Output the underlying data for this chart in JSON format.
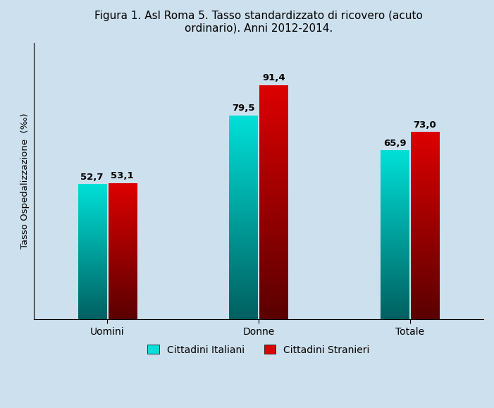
{
  "title": "Figura 1. Asl Roma 5. Tasso standardizzato di ricovero (acuto\nordinario). Anni 2012-2014.",
  "ylabel": "Tasso Ospedalizzazione  (‰)",
  "categories": [
    "Uomini",
    "Donne",
    "Totale"
  ],
  "italiani": [
    52.7,
    79.5,
    65.9
  ],
  "stranieri": [
    53.1,
    91.4,
    73.0
  ],
  "italiani_labels": [
    "52,7",
    "79,5",
    "65,9"
  ],
  "stranieri_labels": [
    "53,1",
    "91,4",
    "73,0"
  ],
  "bar_width": 0.28,
  "group_positions": [
    1.0,
    2.5,
    4.0
  ],
  "ylim": [
    0,
    108
  ],
  "bg_color": "#cde0ed",
  "plot_bg_color": "#cde0ed",
  "legend_labels": [
    "Cittadini Italiani",
    "Cittadini Stranieri"
  ],
  "color_italiani_top": "#00e0d8",
  "color_italiani_bottom": "#006060",
  "color_stranieri_top": "#dd0000",
  "color_stranieri_bottom": "#5a0000",
  "label_fontsize": 9.5,
  "title_fontsize": 11,
  "ylabel_fontsize": 9.5,
  "tick_fontsize": 10,
  "legend_fontsize": 10
}
